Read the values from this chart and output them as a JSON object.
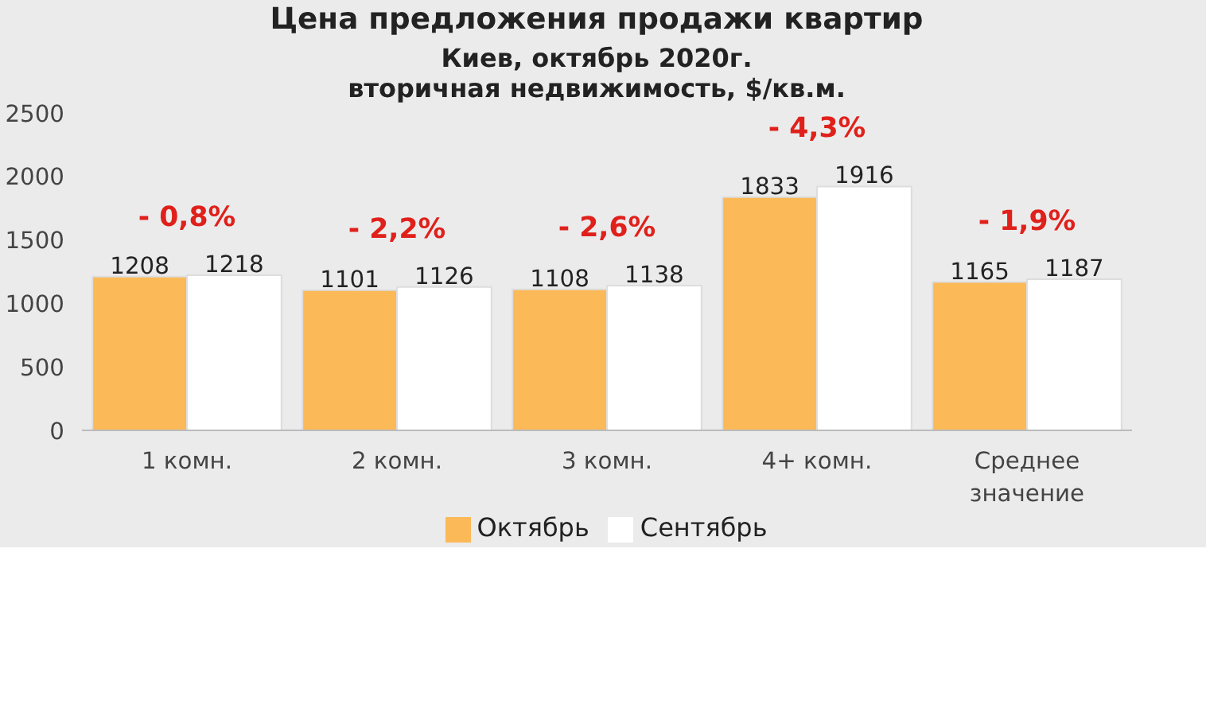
{
  "chart_data": {
    "type": "bar",
    "title": "Цена предложения продажи квартир",
    "subtitle": "Киев, октябрь 2020г.\nвторичная недвижимость, $/кв.м.",
    "categories": [
      "1 комн.",
      "2 комн.",
      "3 комн.",
      "4+ комн.",
      "Среднее\nзначение"
    ],
    "series": [
      {
        "name": "Октябрь",
        "color": "#fbb957",
        "values": [
          1208,
          1101,
          1108,
          1833,
          1165
        ]
      },
      {
        "name": "Сентябрь",
        "color": "#ffffff",
        "values": [
          1218,
          1126,
          1138,
          1916,
          1187
        ]
      }
    ],
    "ylim": [
      0,
      2500
    ],
    "yticks": [
      0,
      500,
      1000,
      1500,
      2000,
      2500
    ],
    "grid": false,
    "legend": "bottom",
    "data_labels": true,
    "annotations": [
      "- 0,8%",
      "- 2,2%",
      "- 2,6%",
      "- 4,3%",
      "- 1,9%"
    ]
  }
}
